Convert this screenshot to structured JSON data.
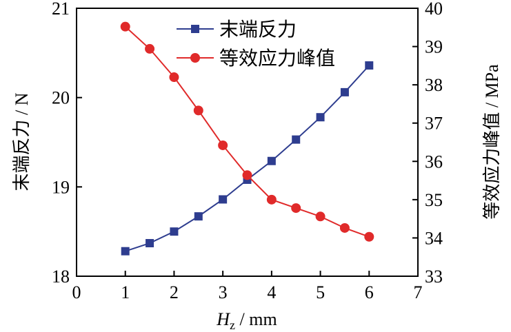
{
  "chart_data": {
    "type": "line",
    "x": [
      1,
      1.5,
      2,
      2.5,
      3,
      3.5,
      4,
      4.5,
      5,
      5.5,
      6
    ],
    "series": [
      {
        "name": "末端反力",
        "axis": "left",
        "color": "#2e3d8f",
        "marker": "square",
        "values": [
          18.28,
          18.37,
          18.5,
          18.67,
          18.86,
          19.08,
          19.29,
          19.53,
          19.78,
          20.06,
          20.36
        ]
      },
      {
        "name": "等效应力峰值",
        "axis": "right",
        "color": "#e02a2a",
        "marker": "circle",
        "values": [
          39.52,
          38.94,
          38.2,
          37.33,
          36.42,
          35.64,
          35.0,
          34.78,
          34.56,
          34.26,
          34.03
        ]
      }
    ],
    "xlabel_main": "H",
    "xlabel_sub": "z",
    "xlabel_unit": " / mm",
    "ylabel": "末端反力 / N",
    "ylabel_right": "等效应力峰值 / MPa",
    "xlim": [
      0,
      7
    ],
    "ylim": [
      18,
      21
    ],
    "ylim_right": [
      33,
      40
    ],
    "xticks": [
      "0",
      "1",
      "2",
      "3",
      "4",
      "5",
      "6",
      "7"
    ],
    "yticks": [
      "18",
      "19",
      "20",
      "21"
    ],
    "yticks_right": [
      "33",
      "34",
      "35",
      "36",
      "37",
      "38",
      "39",
      "40"
    ],
    "legend_position": "top-center",
    "grid": false
  }
}
